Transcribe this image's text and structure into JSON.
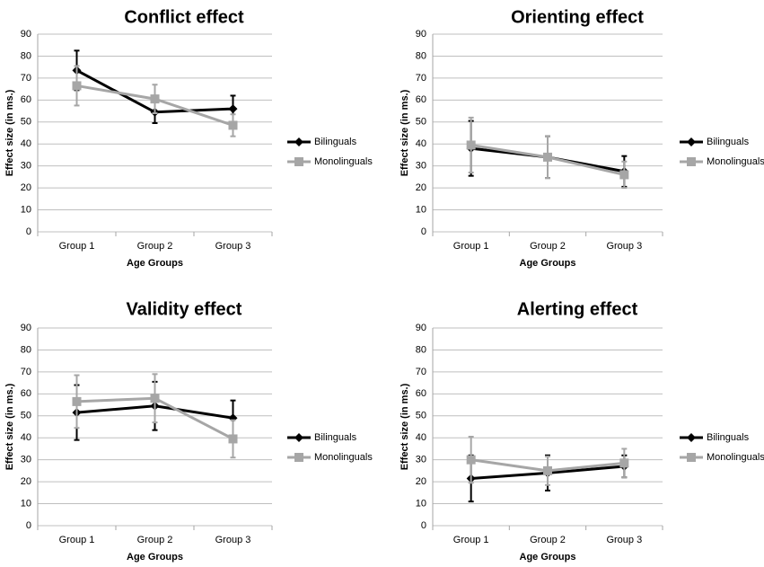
{
  "chart_data": [
    {
      "type": "line",
      "title": "Conflict effect",
      "xlabel": "Age Groups",
      "ylabel": "Effect size (in ms.)",
      "categories": [
        "Group 1",
        "Group 2",
        "Group 3"
      ],
      "ylim": [
        0,
        90
      ],
      "yticks": [
        0,
        10,
        20,
        30,
        40,
        50,
        60,
        70,
        80,
        90
      ],
      "grid": true,
      "legend_position": "right",
      "series": [
        {
          "name": "Bilinguals",
          "color": "#000000",
          "marker": "diamond",
          "values": [
            73.5,
            54.5,
            56
          ],
          "errors": [
            9,
            5,
            6
          ]
        },
        {
          "name": "Monolinguals",
          "color": "#a6a6a6",
          "marker": "square",
          "values": [
            66.5,
            60.5,
            48.5
          ],
          "errors": [
            9,
            6.5,
            5
          ]
        }
      ]
    },
    {
      "type": "line",
      "title": "Orienting effect",
      "xlabel": "Age Groups",
      "ylabel": "Effect size (in ms.)",
      "categories": [
        "Group 1",
        "Group 2",
        "Group 3"
      ],
      "ylim": [
        0,
        90
      ],
      "yticks": [
        0,
        10,
        20,
        30,
        40,
        50,
        60,
        70,
        80,
        90
      ],
      "grid": true,
      "legend_position": "right",
      "series": [
        {
          "name": "Bilinguals",
          "color": "#000000",
          "marker": "diamond",
          "values": [
            38,
            34,
            27.5
          ],
          "errors": [
            12.5,
            9.5,
            7
          ]
        },
        {
          "name": "Monolinguals",
          "color": "#a6a6a6",
          "marker": "square",
          "values": [
            39.5,
            34,
            26
          ],
          "errors": [
            12.5,
            9.5,
            6
          ]
        }
      ]
    },
    {
      "type": "line",
      "title": "Validity effect",
      "xlabel": "Age Groups",
      "ylabel": "Effect size (in ms.)",
      "categories": [
        "Group 1",
        "Group 2",
        "Group 3"
      ],
      "ylim": [
        0,
        90
      ],
      "yticks": [
        0,
        10,
        20,
        30,
        40,
        50,
        60,
        70,
        80,
        90
      ],
      "grid": true,
      "legend_position": "right",
      "series": [
        {
          "name": "Bilinguals",
          "color": "#000000",
          "marker": "diamond",
          "values": [
            51.5,
            54.5,
            49
          ],
          "errors": [
            12.5,
            11,
            8
          ]
        },
        {
          "name": "Monolinguals",
          "color": "#a6a6a6",
          "marker": "square",
          "values": [
            56.5,
            58,
            39.5
          ],
          "errors": [
            12,
            11,
            8.5
          ]
        }
      ]
    },
    {
      "type": "line",
      "title": "Alerting effect",
      "xlabel": "Age Groups",
      "ylabel": "Effect size (in ms.)",
      "categories": [
        "Group 1",
        "Group 2",
        "Group 3"
      ],
      "ylim": [
        0,
        90
      ],
      "yticks": [
        0,
        10,
        20,
        30,
        40,
        50,
        60,
        70,
        80,
        90
      ],
      "grid": true,
      "legend_position": "right",
      "series": [
        {
          "name": "Bilinguals",
          "color": "#000000",
          "marker": "diamond",
          "values": [
            21.5,
            24,
            27
          ],
          "errors": [
            10.5,
            8,
            5
          ]
        },
        {
          "name": "Monolinguals",
          "color": "#a6a6a6",
          "marker": "square",
          "values": [
            30,
            25,
            28.5
          ],
          "errors": [
            10.5,
            6.5,
            6.5
          ]
        }
      ]
    }
  ]
}
